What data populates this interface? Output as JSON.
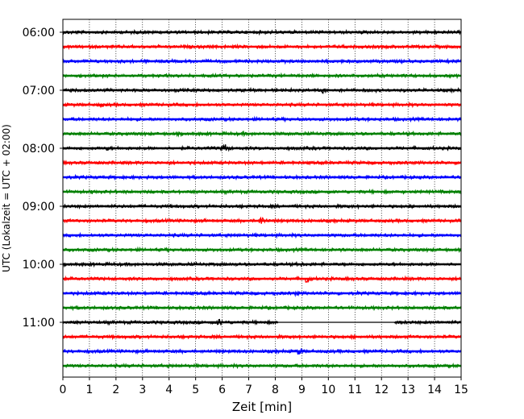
{
  "chart_data": {
    "type": "line",
    "title": "",
    "xlabel": "Zeit  [min]",
    "ylabel": "UTC (Lokalzeit = UTC + 02:00)",
    "xlim": [
      0,
      15
    ],
    "x_ticks": [
      "0",
      "1",
      "2",
      "3",
      "4",
      "5",
      "6",
      "7",
      "8",
      "9",
      "10",
      "11",
      "12",
      "13",
      "14",
      "15"
    ],
    "y_tick_labels": [
      "06:00",
      "07:00",
      "08:00",
      "09:00",
      "10:00",
      "11:00"
    ],
    "grid_x": true,
    "trace_interval_min": 15,
    "trace_colors": [
      "#000000",
      "#ff0000",
      "#0000ff",
      "#008000"
    ],
    "traces": [
      {
        "start": "06:00",
        "color": "#000000",
        "events": [
          {
            "t": 0.2,
            "amp": 0.25
          }
        ]
      },
      {
        "start": "06:15",
        "color": "#ff0000",
        "events": [
          {
            "t": 4.9,
            "amp": 0.2
          }
        ]
      },
      {
        "start": "06:30",
        "color": "#0000ff",
        "events": []
      },
      {
        "start": "06:45",
        "color": "#008000",
        "events": []
      },
      {
        "start": "07:00",
        "color": "#000000",
        "events": [
          {
            "t": 9.8,
            "amp": 0.45
          }
        ]
      },
      {
        "start": "07:15",
        "color": "#ff0000",
        "events": [
          {
            "t": 1.4,
            "amp": 0.35
          }
        ]
      },
      {
        "start": "07:30",
        "color": "#0000ff",
        "events": [
          {
            "t": 13.1,
            "amp": 0.15
          }
        ]
      },
      {
        "start": "07:45",
        "color": "#008000",
        "events": [
          {
            "t": 6.8,
            "amp": 0.3
          }
        ]
      },
      {
        "start": "08:00",
        "color": "#000000",
        "events": [
          {
            "t": 1.7,
            "amp": 0.35
          },
          {
            "t": 6.1,
            "amp": 0.7
          }
        ]
      },
      {
        "start": "08:15",
        "color": "#ff0000",
        "events": []
      },
      {
        "start": "08:30",
        "color": "#0000ff",
        "events": [
          {
            "t": 8.6,
            "amp": 0.2
          }
        ]
      },
      {
        "start": "08:45",
        "color": "#008000",
        "events": [
          {
            "t": 1.1,
            "amp": 0.3
          }
        ]
      },
      {
        "start": "09:00",
        "color": "#000000",
        "events": []
      },
      {
        "start": "09:15",
        "color": "#ff0000",
        "events": [
          {
            "t": 7.5,
            "amp": 0.7
          }
        ]
      },
      {
        "start": "09:30",
        "color": "#0000ff",
        "events": [
          {
            "t": 6.6,
            "amp": 0.2
          }
        ]
      },
      {
        "start": "09:45",
        "color": "#008000",
        "events": [
          {
            "t": 13.5,
            "amp": 0.15
          }
        ]
      },
      {
        "start": "10:00",
        "color": "#000000",
        "events": [
          {
            "t": 9.0,
            "amp": 0.3
          }
        ]
      },
      {
        "start": "10:15",
        "color": "#ff0000",
        "events": [
          {
            "t": 9.2,
            "amp": 0.7
          }
        ]
      },
      {
        "start": "10:30",
        "color": "#0000ff",
        "events": [
          {
            "t": 8.8,
            "amp": 0.35
          }
        ]
      },
      {
        "start": "10:45",
        "color": "#008000",
        "events": []
      },
      {
        "start": "11:00",
        "color": "#000000",
        "events": [
          {
            "t": 5.9,
            "amp": 0.5
          }
        ],
        "gap": [
          8.1,
          12.5
        ]
      },
      {
        "start": "11:15",
        "color": "#ff0000",
        "events": [
          {
            "t": 3.2,
            "amp": 0.2
          }
        ]
      },
      {
        "start": "11:30",
        "color": "#0000ff",
        "events": [
          {
            "t": 8.9,
            "amp": 0.6
          }
        ]
      },
      {
        "start": "11:45",
        "color": "#008000",
        "events": [
          {
            "t": 7.0,
            "amp": 0.2
          }
        ]
      }
    ]
  }
}
